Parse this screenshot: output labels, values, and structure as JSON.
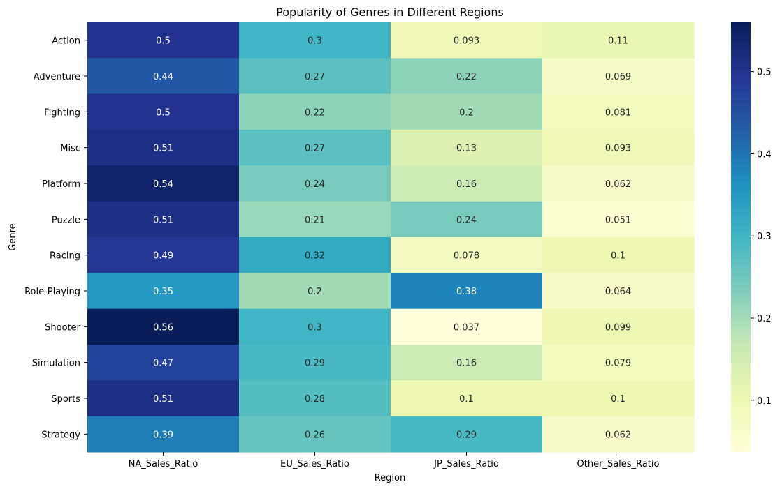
{
  "chart_data": {
    "type": "heatmap",
    "title": "Popularity of Genres in Different Regions",
    "xlabel": "Region",
    "ylabel": "Genre",
    "columns": [
      "NA_Sales_Ratio",
      "EU_Sales_Ratio",
      "JP_Sales_Ratio",
      "Other_Sales_Ratio"
    ],
    "rows": [
      "Action",
      "Adventure",
      "Fighting",
      "Misc",
      "Platform",
      "Puzzle",
      "Racing",
      "Role-Playing",
      "Shooter",
      "Simulation",
      "Sports",
      "Strategy"
    ],
    "values": [
      [
        0.5,
        0.3,
        0.093,
        0.11
      ],
      [
        0.44,
        0.27,
        0.22,
        0.069
      ],
      [
        0.5,
        0.22,
        0.2,
        0.081
      ],
      [
        0.51,
        0.27,
        0.13,
        0.093
      ],
      [
        0.54,
        0.24,
        0.16,
        0.062
      ],
      [
        0.51,
        0.21,
        0.24,
        0.051
      ],
      [
        0.49,
        0.32,
        0.078,
        0.1
      ],
      [
        0.35,
        0.2,
        0.38,
        0.064
      ],
      [
        0.56,
        0.3,
        0.037,
        0.099
      ],
      [
        0.47,
        0.29,
        0.16,
        0.079
      ],
      [
        0.51,
        0.28,
        0.1,
        0.1
      ],
      [
        0.39,
        0.26,
        0.29,
        0.062
      ]
    ],
    "labels": [
      [
        "0.5",
        "0.3",
        "0.093",
        "0.11"
      ],
      [
        "0.44",
        "0.27",
        "0.22",
        "0.069"
      ],
      [
        "0.5",
        "0.22",
        "0.2",
        "0.081"
      ],
      [
        "0.51",
        "0.27",
        "0.13",
        "0.093"
      ],
      [
        "0.54",
        "0.24",
        "0.16",
        "0.062"
      ],
      [
        "0.51",
        "0.21",
        "0.24",
        "0.051"
      ],
      [
        "0.49",
        "0.32",
        "0.078",
        "0.1"
      ],
      [
        "0.35",
        "0.2",
        "0.38",
        "0.064"
      ],
      [
        "0.56",
        "0.3",
        "0.037",
        "0.099"
      ],
      [
        "0.47",
        "0.29",
        "0.16",
        "0.079"
      ],
      [
        "0.51",
        "0.28",
        "0.1",
        "0.1"
      ],
      [
        "0.39",
        "0.26",
        "0.29",
        "0.062"
      ]
    ],
    "colormap": "YlGnBu",
    "vmin": 0.037,
    "vmax": 0.56,
    "colorbar_ticks": [
      0.1,
      0.2,
      0.3,
      0.4,
      0.5
    ],
    "colorbar_tick_labels": [
      "0.1",
      "0.2",
      "0.3",
      "0.4",
      "0.5"
    ],
    "colorbar_placement": "right",
    "grid": false
  }
}
